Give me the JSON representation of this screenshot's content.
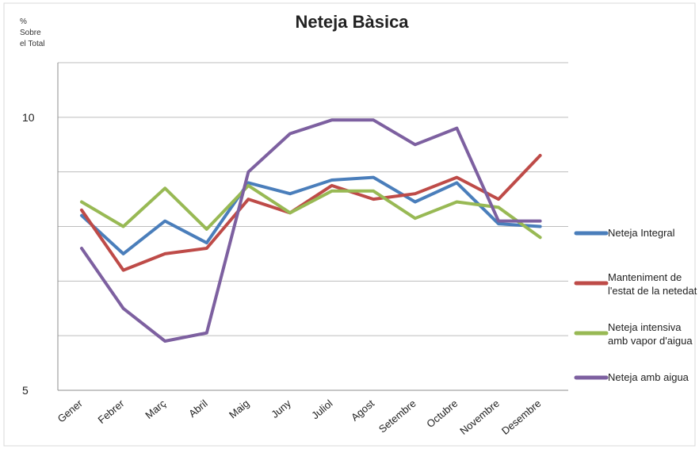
{
  "chart_data": {
    "type": "line",
    "title": "Neteja Bàsica",
    "ylabel_lines": [
      "%",
      "Sobre",
      "el Total"
    ],
    "xlabel": "",
    "ylim": [
      5,
      11
    ],
    "yticks": [
      5,
      10
    ],
    "grid": true,
    "legend_position": "right",
    "categories": [
      "Gener",
      "Febrer",
      "Març",
      "Abril",
      "Maig",
      "Juny",
      "Juliol",
      "Agost",
      "Setembre",
      "Octubre",
      "Novembre",
      "Desembre"
    ],
    "series": [
      {
        "name": "Neteja Integral",
        "name_lines": [
          "Neteja Integral"
        ],
        "color": "#4a7ebb",
        "values": [
          8.2,
          7.5,
          8.1,
          7.7,
          8.8,
          8.6,
          8.85,
          8.9,
          8.45,
          8.8,
          8.05,
          8.0
        ]
      },
      {
        "name": "Manteniment de l'estat de la netedat",
        "name_lines": [
          "Manteniment de",
          "l'estat de la netedat"
        ],
        "color": "#be4b48",
        "values": [
          8.3,
          7.2,
          7.5,
          7.6,
          8.5,
          8.25,
          8.75,
          8.5,
          8.6,
          8.9,
          8.5,
          9.3
        ]
      },
      {
        "name": "Neteja intensiva amb vapor d'aigua",
        "name_lines": [
          "Neteja intensiva",
          "amb vapor d'aigua"
        ],
        "color": "#98b954",
        "values": [
          8.45,
          8.0,
          8.7,
          7.95,
          8.75,
          8.25,
          8.65,
          8.65,
          8.15,
          8.45,
          8.35,
          7.8
        ]
      },
      {
        "name": "Neteja amb aigua",
        "name_lines": [
          "Neteja amb aigua"
        ],
        "color": "#7d60a0",
        "values": [
          7.6,
          6.5,
          5.9,
          6.05,
          9.0,
          9.7,
          9.95,
          9.95,
          9.5,
          9.8,
          8.1,
          8.1
        ]
      }
    ]
  }
}
